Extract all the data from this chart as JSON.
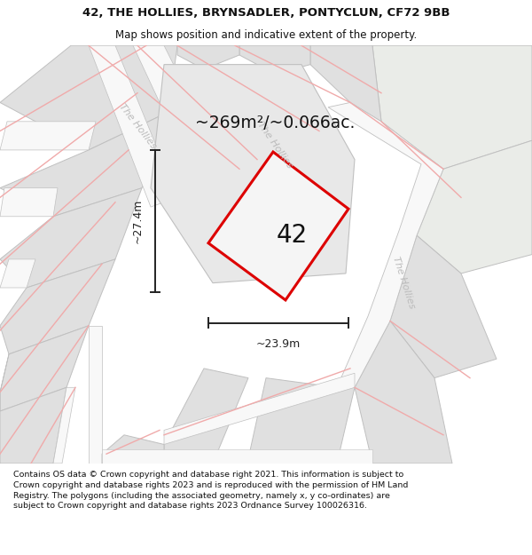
{
  "title_line1": "42, THE HOLLIES, BRYNSADLER, PONTYCLUN, CF72 9BB",
  "title_line2": "Map shows position and indicative extent of the property.",
  "footer_text": "Contains OS data © Crown copyright and database right 2021. This information is subject to Crown copyright and database rights 2023 and is reproduced with the permission of HM Land Registry. The polygons (including the associated geometry, namely x, y co-ordinates) are subject to Crown copyright and database rights 2023 Ordnance Survey 100026316.",
  "area_label": "~269m²/~0.066ac.",
  "plot_number": "42",
  "dim_width": "~23.9m",
  "dim_height": "~27.4m",
  "bg_color": "#ffffff",
  "map_bg": "#f7f7f7",
  "plot_outline_color": "#dd0000",
  "street_label": "The Hollies",
  "dim_color": "#222222",
  "title_color": "#111111",
  "footer_color": "#111111",
  "parcel_fill": "#e0e0e0",
  "parcel_edge": "#c0c0c0",
  "road_fill": "#f0f0f0",
  "street_label_color": "#bbbbbb",
  "red_line_color": "#f0aaaa",
  "title_fontsize": 9.5,
  "subtitle_fontsize": 8.5,
  "footer_fontsize": 6.8,
  "area_fontsize": 13.5,
  "number_fontsize": 20,
  "dim_fontsize": 9,
  "street_fontsize": 8
}
